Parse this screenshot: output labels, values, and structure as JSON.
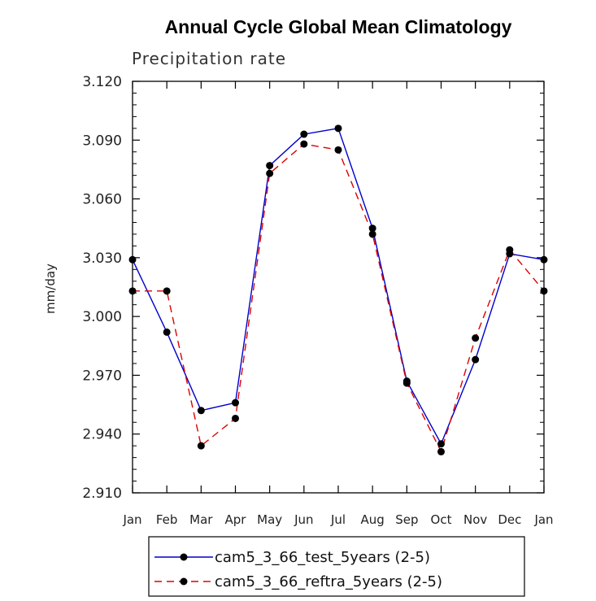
{
  "chart_data": {
    "type": "line",
    "title": "Annual Cycle Global Mean Climatology",
    "subtitle": "Precipitation rate",
    "xlabel": "",
    "ylabel": "mm/day",
    "categories": [
      "Jan",
      "Feb",
      "Mar",
      "Apr",
      "May",
      "Jun",
      "Jul",
      "Aug",
      "Sep",
      "Oct",
      "Nov",
      "Dec",
      "Jan"
    ],
    "ylim": [
      2.91,
      3.12
    ],
    "yticks": [
      "3.120",
      "3.090",
      "3.060",
      "3.030",
      "3.000",
      "2.970",
      "2.940",
      "2.910"
    ],
    "series": [
      {
        "name": "cam5_3_66_test_5years (2-5)",
        "color": "#0000cc",
        "dash": "solid",
        "values": [
          3.029,
          2.992,
          2.952,
          2.956,
          3.077,
          3.093,
          3.096,
          3.045,
          2.967,
          2.935,
          2.978,
          3.032,
          3.029
        ]
      },
      {
        "name": "cam5_3_66_reftra_5years (2-5)",
        "color": "#dd0000",
        "dash": "dashed",
        "values": [
          3.013,
          3.013,
          2.934,
          2.948,
          3.073,
          3.088,
          3.085,
          3.042,
          2.966,
          2.931,
          2.989,
          3.034,
          3.013
        ]
      }
    ],
    "legend_position": "bottom"
  }
}
